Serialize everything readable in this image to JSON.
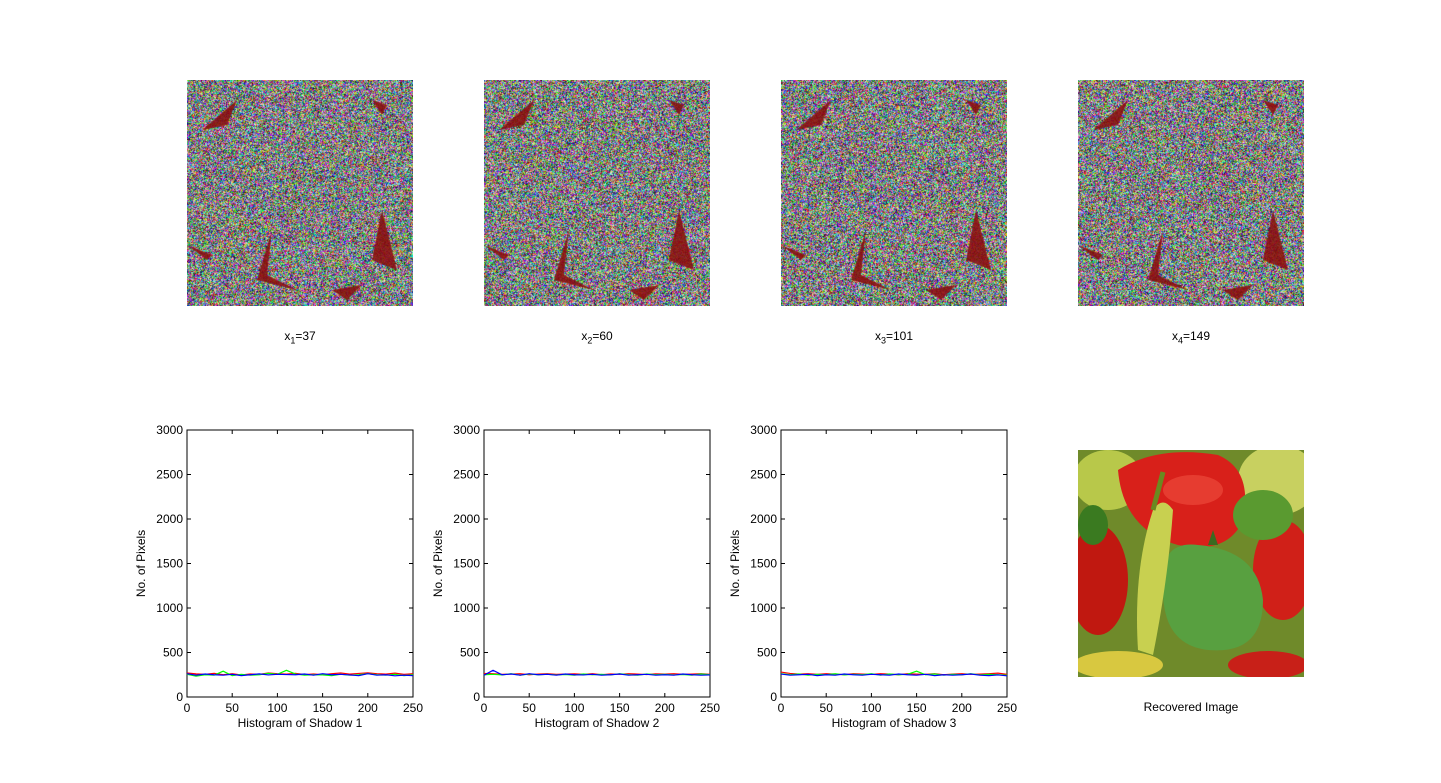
{
  "shares": [
    {
      "var": "x",
      "sub": "1",
      "eq": "=37"
    },
    {
      "var": "x",
      "sub": "2",
      "eq": "=60"
    },
    {
      "var": "x",
      "sub": "3",
      "eq": "=101"
    },
    {
      "var": "x",
      "sub": "4",
      "eq": "=149"
    }
  ],
  "recovered": {
    "caption": "Recovered Image"
  },
  "colors": {
    "red": "#ff0000",
    "green": "#00ff00",
    "blue": "#0000ff",
    "shape": "#8b0a0a"
  },
  "chart_data": [
    {
      "type": "line",
      "xlabel": "Histogram of Shadow 1",
      "ylabel": "No. of Pixels",
      "xlim": [
        0,
        250
      ],
      "ylim": [
        0,
        3000
      ],
      "xticks": [
        0,
        50,
        100,
        150,
        200,
        250
      ],
      "yticks": [
        0,
        500,
        1000,
        1500,
        2000,
        2500,
        3000
      ],
      "grid": false,
      "x": [
        0,
        10,
        20,
        30,
        40,
        50,
        60,
        70,
        80,
        90,
        100,
        110,
        120,
        130,
        140,
        150,
        160,
        170,
        180,
        190,
        200,
        210,
        220,
        230,
        240,
        250
      ],
      "series": [
        {
          "color": "#ff0000",
          "values": [
            270,
            260,
            255,
            265,
            250,
            262,
            248,
            258,
            255,
            270,
            262,
            258,
            265,
            252,
            258,
            250,
            262,
            270,
            258,
            265,
            272,
            262,
            258,
            268,
            255,
            262
          ]
        },
        {
          "color": "#00ff00",
          "values": [
            255,
            235,
            250,
            245,
            290,
            240,
            255,
            245,
            250,
            265,
            255,
            300,
            258,
            245,
            250,
            248,
            240,
            255,
            245,
            250,
            262,
            250,
            245,
            255,
            240,
            250
          ]
        },
        {
          "color": "#0000ff",
          "values": [
            262,
            245,
            258,
            250,
            245,
            255,
            240,
            250,
            260,
            248,
            255,
            252,
            250,
            258,
            245,
            262,
            250,
            255,
            248,
            240,
            262,
            245,
            250,
            238,
            245,
            240
          ]
        }
      ]
    },
    {
      "type": "line",
      "xlabel": "Histogram of Shadow 2",
      "ylabel": "No. of Pixels",
      "xlim": [
        0,
        250
      ],
      "ylim": [
        0,
        3000
      ],
      "xticks": [
        0,
        50,
        100,
        150,
        200,
        250
      ],
      "yticks": [
        0,
        500,
        1000,
        1500,
        2000,
        2500,
        3000
      ],
      "grid": false,
      "x": [
        0,
        10,
        20,
        30,
        40,
        50,
        60,
        70,
        80,
        90,
        100,
        110,
        120,
        130,
        140,
        150,
        160,
        170,
        180,
        190,
        200,
        210,
        220,
        230,
        240,
        250
      ],
      "series": [
        {
          "color": "#ff0000",
          "values": [
            265,
            262,
            255,
            258,
            262,
            250,
            258,
            262,
            255,
            258,
            260,
            255,
            262,
            250,
            258,
            255,
            262,
            258,
            252,
            260,
            258,
            262,
            255,
            258,
            262,
            255
          ]
        },
        {
          "color": "#00ff00",
          "values": [
            250,
            255,
            248,
            262,
            245,
            258,
            250,
            255,
            248,
            252,
            245,
            258,
            250,
            255,
            248,
            262,
            250,
            245,
            258,
            250,
            255,
            248,
            252,
            245,
            258,
            250
          ]
        },
        {
          "color": "#0000ff",
          "values": [
            245,
            300,
            250,
            258,
            245,
            262,
            250,
            255,
            245,
            258,
            250,
            248,
            255,
            245,
            250,
            258,
            245,
            250,
            255,
            245,
            250,
            245,
            258,
            250,
            245,
            248
          ]
        }
      ]
    },
    {
      "type": "line",
      "xlabel": "Histogram of Shadow 3",
      "ylabel": "No. of Pixels",
      "xlim": [
        0,
        250
      ],
      "ylim": [
        0,
        3000
      ],
      "xticks": [
        0,
        50,
        100,
        150,
        200,
        250
      ],
      "yticks": [
        0,
        500,
        1000,
        1500,
        2000,
        2500,
        3000
      ],
      "grid": false,
      "x": [
        0,
        10,
        20,
        30,
        40,
        50,
        60,
        70,
        80,
        90,
        100,
        110,
        120,
        130,
        140,
        150,
        160,
        170,
        180,
        190,
        200,
        210,
        220,
        230,
        240,
        250
      ],
      "series": [
        {
          "color": "#ff0000",
          "values": [
            280,
            265,
            258,
            262,
            255,
            262,
            258,
            250,
            262,
            258,
            255,
            262,
            258,
            250,
            262,
            258,
            255,
            262,
            250,
            258,
            262,
            255,
            258,
            262,
            268,
            255
          ]
        },
        {
          "color": "#00ff00",
          "values": [
            262,
            250,
            258,
            245,
            255,
            250,
            262,
            248,
            255,
            250,
            262,
            245,
            258,
            250,
            255,
            290,
            250,
            258,
            245,
            255,
            250,
            262,
            248,
            255,
            250,
            245
          ]
        },
        {
          "color": "#0000ff",
          "values": [
            258,
            245,
            250,
            255,
            240,
            250,
            245,
            258,
            250,
            245,
            255,
            250,
            245,
            258,
            250,
            245,
            255,
            240,
            250,
            245,
            250,
            258,
            245,
            240,
            248,
            238
          ]
        }
      ]
    }
  ]
}
